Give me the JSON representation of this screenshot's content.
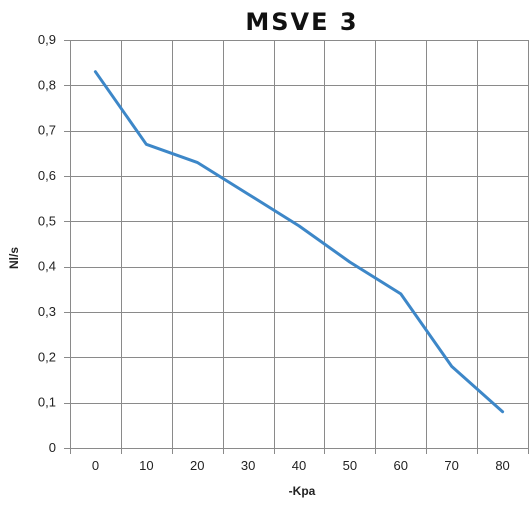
{
  "chart_data": {
    "type": "line",
    "title": "MSVE 3",
    "xlabel": "-Kpa",
    "ylabel": "Nl/s",
    "x": [
      0,
      10,
      20,
      30,
      40,
      50,
      60,
      70,
      80
    ],
    "xticks": [
      "0",
      "10",
      "20",
      "30",
      "40",
      "50",
      "60",
      "70",
      "80"
    ],
    "yticks": [
      "0",
      "0,1",
      "0,2",
      "0,3",
      "0,4",
      "0,5",
      "0,6",
      "0,7",
      "0,8",
      "0,9"
    ],
    "ylim": [
      0,
      0.9
    ],
    "grid": true,
    "series": [
      {
        "values": [
          0.83,
          0.67,
          0.63,
          0.56,
          0.49,
          0.41,
          0.34,
          0.18,
          0.08
        ],
        "color": "#3d87c8"
      }
    ]
  }
}
